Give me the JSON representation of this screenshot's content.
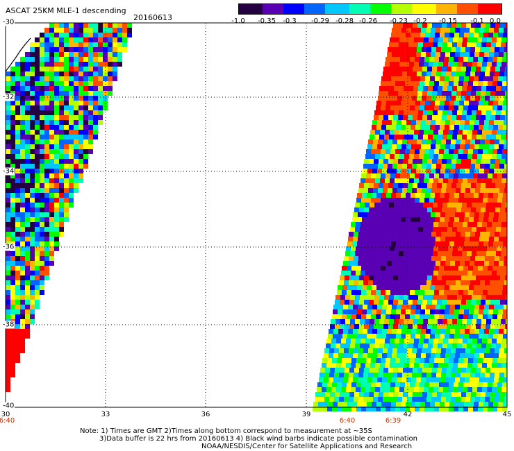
{
  "header": {
    "title": "ASCAT 25KM MLE-1 descending",
    "date": "20160613"
  },
  "colorbar": {
    "colors": [
      "#240040",
      "#5a00b4",
      "#0000ff",
      "#0064ff",
      "#00c8ff",
      "#00ffb4",
      "#00ff00",
      "#b4ff00",
      "#ffff00",
      "#ffb400",
      "#ff5000",
      "#ff0000"
    ],
    "ticks": [
      "-1.0",
      "-0.35",
      "-0.3",
      "-0.29",
      "-0.28",
      "-0.26",
      "-0.23",
      "-0.2",
      "-0.15",
      "-0.1",
      "0.0"
    ]
  },
  "axes": {
    "lon_ticks": [
      "30",
      "33",
      "36",
      "39",
      "42",
      "45"
    ],
    "lat_ticks": [
      "-30",
      "-32",
      "-34",
      "-36",
      "-38",
      "-40"
    ]
  },
  "times": [
    "6:40",
    "6:40",
    "6:39"
  ],
  "notes": [
    "Note: 1) Times are GMT 2)Times along bottom correspond to measurement at ~35S",
    "3)Data buffer is 22 hrs from 20160613 4) Black wind barbs indicate possible contamination",
    "NOAA/NESDIS/Center for Satellite Applications and Research"
  ]
}
